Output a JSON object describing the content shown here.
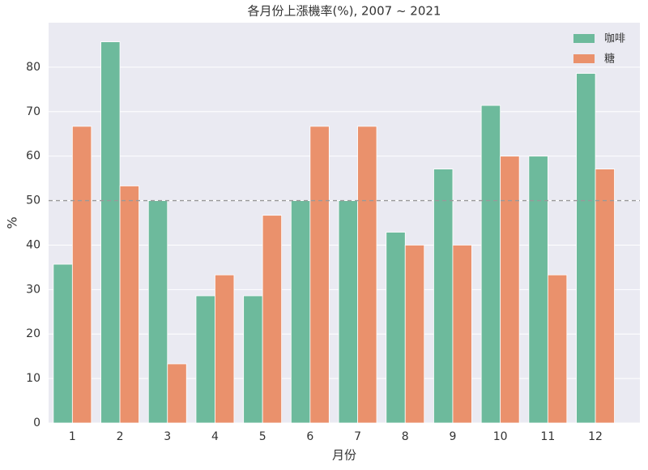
{
  "chart_data": {
    "type": "bar",
    "title": "各月份上漲機率(%), 2007 ~ 2021",
    "x_label": "月份",
    "y_label": "%",
    "categories": [
      "1",
      "2",
      "3",
      "4",
      "5",
      "6",
      "7",
      "8",
      "9",
      "10",
      "11",
      "12"
    ],
    "series": [
      {
        "name": "咖啡",
        "color": "#6dba9c",
        "values": [
          35.7,
          85.7,
          50,
          28.6,
          28.6,
          50,
          50,
          42.9,
          57.1,
          71.4,
          60,
          78.6
        ]
      },
      {
        "name": "糖",
        "color": "#ea916c",
        "values": [
          66.7,
          53.3,
          13.3,
          33.3,
          46.7,
          66.7,
          66.7,
          40,
          40,
          60,
          33.3,
          57.1
        ]
      }
    ],
    "ylim": [
      0,
      90
    ],
    "yticks": [
      0,
      10,
      20,
      30,
      40,
      50,
      60,
      70,
      80
    ],
    "reference_line": 50,
    "grid": true,
    "legend": "upper-right"
  }
}
